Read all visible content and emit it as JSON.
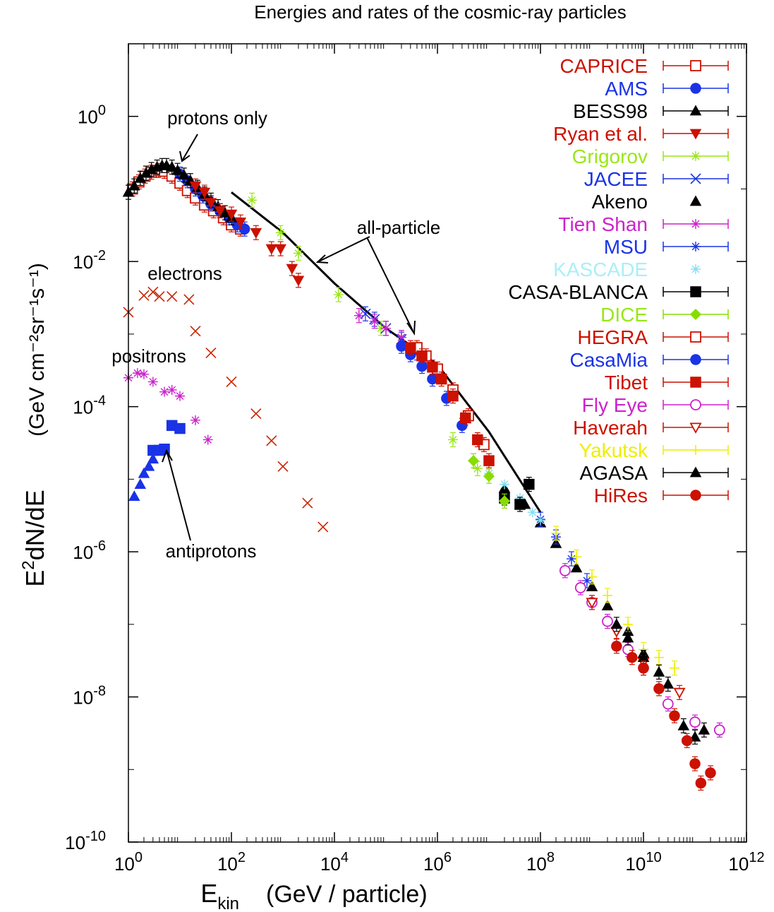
{
  "chart_data": {
    "type": "scatter",
    "title": "Energies and rates of the cosmic-ray particles",
    "xlabel_main": "E",
    "xlabel_sub": "kin",
    "xlabel_rest": "(GeV / particle)",
    "ylabel_main": "E",
    "ylabel_sup": "2",
    "ylabel_rest": "dN/dE",
    "yunit": "(GeV cm⁻²sr⁻¹s⁻¹)",
    "x_scale": "log",
    "y_scale": "log",
    "xlim": [
      1,
      1000000000000.0
    ],
    "ylim": [
      1e-10,
      10
    ],
    "grid": false,
    "legend_position": "top-right",
    "x_ticks": [
      {
        "value": 1,
        "base": "10",
        "exp": "0"
      },
      {
        "value": 100,
        "base": "10",
        "exp": "2"
      },
      {
        "value": 10000,
        "base": "10",
        "exp": "4"
      },
      {
        "value": 1000000,
        "base": "10",
        "exp": "6"
      },
      {
        "value": 100000000,
        "base": "10",
        "exp": "8"
      },
      {
        "value": 10000000000,
        "base": "10",
        "exp": "10"
      },
      {
        "value": 1000000000000,
        "base": "10",
        "exp": "12"
      }
    ],
    "y_ticks": [
      {
        "value": 1,
        "base": "10",
        "exp": "0"
      },
      {
        "value": 0.01,
        "base": "10",
        "exp": "-2"
      },
      {
        "value": 0.0001,
        "base": "10",
        "exp": "-4"
      },
      {
        "value": 1e-06,
        "base": "10",
        "exp": "-6"
      },
      {
        "value": 1e-08,
        "base": "10",
        "exp": "-8"
      },
      {
        "value": 1e-10,
        "base": "10",
        "exp": "-10"
      }
    ],
    "annotations": [
      {
        "text": "protons only"
      },
      {
        "text": "all-particle"
      },
      {
        "text": "electrons"
      },
      {
        "text": "positrons"
      },
      {
        "text": "antiprotons"
      }
    ],
    "series": [
      {
        "name": "CAPRICE",
        "color": "#cc1100",
        "marker": "square-open",
        "errorbars": true,
        "points": [
          [
            1.2,
            0.1
          ],
          [
            1.6,
            0.125
          ],
          [
            2.1,
            0.15
          ],
          [
            2.8,
            0.17
          ],
          [
            3.8,
            0.18
          ],
          [
            5,
            0.175
          ],
          [
            7,
            0.15
          ],
          [
            10,
            0.12
          ],
          [
            14,
            0.095
          ],
          [
            20,
            0.075
          ],
          [
            30,
            0.06
          ],
          [
            45,
            0.05
          ],
          [
            70,
            0.04
          ],
          [
            100,
            0.032
          ],
          [
            150,
            0.028
          ]
        ]
      },
      {
        "name": "AMS",
        "color": "#1a33e6",
        "marker": "circle-filled",
        "errorbars": true,
        "points": [
          [
            10,
            0.16
          ],
          [
            14,
            0.13
          ],
          [
            20,
            0.1
          ],
          [
            28,
            0.08
          ],
          [
            40,
            0.062
          ],
          [
            60,
            0.05
          ],
          [
            90,
            0.04
          ],
          [
            130,
            0.032
          ],
          [
            180,
            0.028
          ]
        ]
      },
      {
        "name": "BESS98",
        "color": "#000000",
        "marker": "triangle-filled",
        "errorbars": true,
        "points": [
          [
            1,
            0.09
          ],
          [
            1.3,
            0.11
          ],
          [
            1.7,
            0.14
          ],
          [
            2.2,
            0.165
          ],
          [
            2.8,
            0.185
          ],
          [
            3.6,
            0.2
          ],
          [
            4.5,
            0.21
          ],
          [
            5.5,
            0.21
          ],
          [
            7,
            0.2
          ],
          [
            9,
            0.18
          ],
          [
            12,
            0.155
          ],
          [
            16,
            0.13
          ],
          [
            22,
            0.105
          ],
          [
            30,
            0.085
          ],
          [
            40,
            0.07
          ],
          [
            55,
            0.057
          ],
          [
            75,
            0.047
          ],
          [
            100,
            0.04
          ]
        ]
      },
      {
        "name": "Ryan et al.",
        "color": "#cc1100",
        "marker": "triangle-down-filled",
        "errorbars": true,
        "points": [
          [
            20,
            0.11
          ],
          [
            30,
            0.09
          ],
          [
            40,
            0.065
          ],
          [
            60,
            0.05
          ],
          [
            100,
            0.045
          ],
          [
            150,
            0.035
          ],
          [
            300,
            0.025
          ],
          [
            600,
            0.015
          ],
          [
            900,
            0.015
          ],
          [
            1500,
            0.008
          ],
          [
            2000,
            0.0055
          ]
        ]
      },
      {
        "name": "Grigorov",
        "color": "#99e619",
        "marker": "star",
        "errorbars": true,
        "points": [
          [
            250,
            0.07
          ],
          [
            900,
            0.025
          ],
          [
            2000,
            0.013
          ],
          [
            12000,
            0.0035
          ],
          [
            80000,
            0.0012
          ],
          [
            200000,
            0.0009
          ],
          [
            2000000,
            3.5e-05
          ],
          [
            6000000,
            1.4e-05
          ]
        ]
      },
      {
        "name": "JACEE",
        "color": "#1a33e6",
        "marker": "x",
        "errorbars": true,
        "points": [
          [
            40000,
            0.0019
          ],
          [
            60000,
            0.0016
          ],
          [
            100000,
            0.0012
          ],
          [
            200000,
            0.00085
          ],
          [
            400000,
            0.00055
          ]
        ]
      },
      {
        "name": "Akeno",
        "color": "#000000",
        "marker": "triangle-filled",
        "errorbars": false,
        "points": [
          [
            20000000,
            7.5e-06
          ],
          [
            50000000,
            4.5e-06
          ],
          [
            100000000,
            2.5e-06
          ],
          [
            200000000,
            1.3e-06
          ],
          [
            500000000,
            6e-07
          ],
          [
            1000000000,
            3.3e-07
          ],
          [
            2000000000,
            1.8e-07
          ],
          [
            5000000000,
            8e-08
          ],
          [
            10000000000,
            4e-08
          ]
        ]
      },
      {
        "name": "Tien Shan",
        "color": "#cc22cc",
        "marker": "star",
        "errorbars": true,
        "points": [
          [
            30000,
            0.0018
          ],
          [
            60000,
            0.0015
          ],
          [
            100000,
            0.0012
          ],
          [
            200000,
            0.0009
          ]
        ]
      },
      {
        "name": "MSU",
        "color": "#1a33e6",
        "marker": "star",
        "errorbars": true,
        "points": [
          [
            100000000,
            2.8e-06
          ],
          [
            200000000,
            1.6e-06
          ],
          [
            400000000,
            8e-07
          ],
          [
            800000000,
            4e-07
          ]
        ]
      },
      {
        "name": "KASCADE",
        "color": "#88ddee",
        "marker": "star",
        "errorbars": false,
        "points": [
          [
            10000000,
            1.2e-05
          ],
          [
            20000000,
            8.5e-06
          ],
          [
            40000000,
            5.5e-06
          ],
          [
            70000000,
            3.5e-06
          ],
          [
            100000000,
            2.7e-06
          ]
        ]
      },
      {
        "name": "CASA-BLANCA",
        "color": "#000000",
        "marker": "square-filled",
        "errorbars": true,
        "points": [
          [
            20000000,
            5.5e-06
          ],
          [
            40000000,
            4.5e-06
          ],
          [
            60000000,
            8.5e-06
          ]
        ]
      },
      {
        "name": "DICE",
        "color": "#88dd00",
        "marker": "diamond-filled",
        "errorbars": true,
        "points": [
          [
            5000000,
            1.8e-05
          ],
          [
            10000000,
            1.1e-05
          ],
          [
            20000000,
            5e-06
          ]
        ]
      },
      {
        "name": "HEGRA",
        "color": "#cc1100",
        "marker": "square-open",
        "errorbars": true,
        "points": [
          [
            400000,
            0.00065
          ],
          [
            600000,
            0.0005
          ],
          [
            1000000,
            0.00033
          ],
          [
            2000000,
            0.00017
          ],
          [
            4000000,
            7.5e-05
          ],
          [
            8000000,
            3e-05
          ]
        ]
      },
      {
        "name": "CasaMia",
        "color": "#1a33e6",
        "marker": "circle-filled",
        "errorbars": true,
        "points": [
          [
            200000,
            0.00068
          ],
          [
            300000,
            0.00052
          ],
          [
            500000,
            0.00036
          ],
          [
            800000,
            0.00024
          ],
          [
            1500000,
            0.00013
          ],
          [
            3000000,
            5.5e-05
          ]
        ]
      },
      {
        "name": "Tibet",
        "color": "#cc1100",
        "marker": "square-filled",
        "errorbars": true,
        "points": [
          [
            300000,
            0.00065
          ],
          [
            500000,
            0.0005
          ],
          [
            800000,
            0.00035
          ],
          [
            1200000,
            0.00024
          ],
          [
            2000000,
            0.00014
          ],
          [
            3500000,
            7e-05
          ],
          [
            6000000,
            3.5e-05
          ],
          [
            10000000,
            1.8e-05
          ]
        ]
      },
      {
        "name": "Fly Eye",
        "color": "#cc22cc",
        "marker": "circle-open",
        "errorbars": true,
        "points": [
          [
            300000000,
            5.5e-07
          ],
          [
            600000000,
            3.2e-07
          ],
          [
            1000000000,
            2e-07
          ],
          [
            2000000000,
            1.1e-07
          ],
          [
            5000000000,
            4.5e-08
          ],
          [
            10000000000,
            2.5e-08
          ],
          [
            30000000000,
            8e-09
          ],
          [
            100000000000,
            4.5e-09
          ],
          [
            300000000000,
            3.5e-09
          ]
        ]
      },
      {
        "name": "Haverah",
        "color": "#cc1100",
        "marker": "triangle-down-open",
        "errorbars": true,
        "points": [
          [
            1000000000,
            2e-07
          ],
          [
            3000000000,
            8e-08
          ],
          [
            10000000000,
            3e-08
          ],
          [
            50000000000,
            1.15e-08
          ]
        ]
      },
      {
        "name": "Yakutsk",
        "color": "#eeee00",
        "marker": "plus",
        "errorbars": true,
        "points": [
          [
            200000000,
            1.8e-06
          ],
          [
            500000000,
            8.5e-07
          ],
          [
            1000000000,
            4.5e-07
          ],
          [
            2000000000,
            2.5e-07
          ],
          [
            5000000000,
            1e-07
          ],
          [
            10000000000,
            4.5e-08
          ],
          [
            20000000000,
            3.5e-08
          ],
          [
            40000000000,
            2.5e-08
          ]
        ]
      },
      {
        "name": "AGASA",
        "color": "#000000",
        "marker": "triangle-filled",
        "errorbars": true,
        "points": [
          [
            3000000000,
            1e-07
          ],
          [
            5000000000,
            6.5e-08
          ],
          [
            10000000000,
            3.5e-08
          ],
          [
            20000000000,
            2.2e-08
          ],
          [
            30000000000,
            1.5e-08
          ],
          [
            60000000000,
            4e-09
          ],
          [
            100000000000,
            2.8e-09
          ],
          [
            150000000000,
            3.5e-09
          ]
        ]
      },
      {
        "name": "HiRes",
        "color": "#cc1100",
        "marker": "circle-filled",
        "errorbars": true,
        "points": [
          [
            3000000000,
            5e-08
          ],
          [
            6000000000,
            3.5e-08
          ],
          [
            10000000000,
            2.5e-08
          ],
          [
            20000000000,
            1.3e-08
          ],
          [
            40000000000,
            5.5e-09
          ],
          [
            70000000000,
            2.5e-09
          ],
          [
            100000000000,
            1.2e-09
          ],
          [
            130000000000,
            6.5e-10
          ],
          [
            200000000000,
            9e-10
          ]
        ]
      }
    ],
    "other_series": [
      {
        "label": "all-particle",
        "color": "#000000",
        "marker": "line",
        "points": [
          [
            100,
            0.09
          ],
          [
            1000,
            0.025
          ],
          [
            10000,
            0.005
          ],
          [
            100000,
            0.0012
          ],
          [
            300000,
            0.0007
          ],
          [
            1000000,
            0.00038
          ],
          [
            10000000,
            4.5e-05
          ],
          [
            100000000,
            3.5e-06
          ]
        ]
      },
      {
        "label": "electrons",
        "color": "#cc2200",
        "marker": "x",
        "points": [
          [
            1,
            0.002
          ],
          [
            2,
            0.0034
          ],
          [
            3,
            0.0038
          ],
          [
            4,
            0.0033
          ],
          [
            7,
            0.0033
          ],
          [
            15,
            0.003
          ],
          [
            20,
            0.0011
          ],
          [
            40,
            0.00055
          ],
          [
            100,
            0.00022
          ],
          [
            300,
            8e-05
          ],
          [
            600,
            3.4e-05
          ],
          [
            1000,
            1.5e-05
          ],
          [
            3000,
            4.7e-06
          ],
          [
            6000,
            2.2e-06
          ]
        ]
      },
      {
        "label": "positrons",
        "color": "#cc22cc",
        "marker": "star",
        "points": [
          [
            1,
            0.00025
          ],
          [
            1.5,
            0.00029
          ],
          [
            2,
            0.00028
          ],
          [
            3,
            0.00022
          ],
          [
            5,
            0.00016
          ],
          [
            7,
            0.00017
          ],
          [
            10,
            0.00014
          ],
          [
            20,
            6.5e-05
          ],
          [
            35,
            3.5e-05
          ]
        ]
      },
      {
        "label": "antiprotons",
        "color": "#1a33e6",
        "marker": "square-filled",
        "points": [
          [
            3,
            2.5e-05
          ],
          [
            4,
            2.5e-05
          ],
          [
            5,
            2.6e-05
          ],
          [
            7,
            5.5e-05
          ],
          [
            10,
            5e-05
          ]
        ]
      },
      {
        "label": "antiprotons",
        "color": "#1a33e6",
        "marker": "triangle-filled",
        "points": [
          [
            1.3,
            5.8e-06
          ],
          [
            1.7,
            8.5e-06
          ],
          [
            2,
            1.2e-05
          ],
          [
            2.5,
            1.5e-05
          ],
          [
            3,
            1.9e-05
          ]
        ]
      }
    ]
  }
}
